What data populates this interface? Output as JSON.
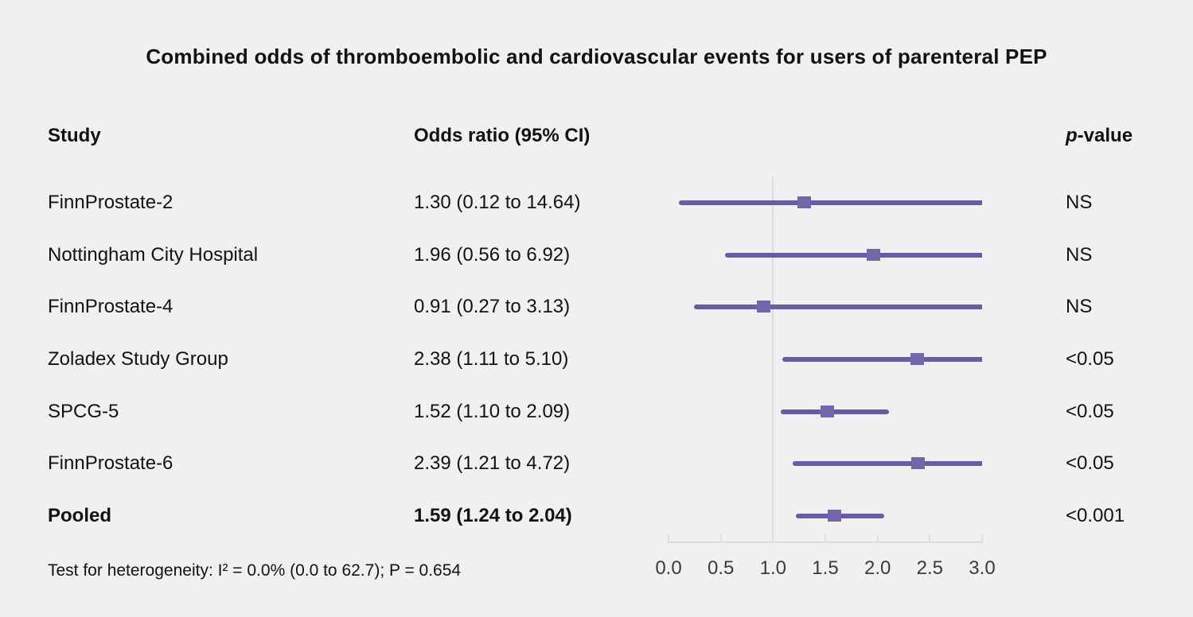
{
  "title": "Combined odds of thromboembolic and cardiovascular events for users of parenteral PEP",
  "columns": {
    "study": "Study",
    "odds_ratio": "Odds ratio (95% CI)",
    "p_italic": "p",
    "p_rest": "-value"
  },
  "footnote": "Test for heterogeneity: I² = 0.0% (0.0 to 62.7); P = 0.654",
  "colors": {
    "background": "#f1f0f0",
    "ci_line": "#675ca7",
    "or_marker": "#7565ab",
    "axis": "#d9dde1",
    "text": "#121212"
  },
  "chart_data": {
    "type": "forest",
    "title": "Combined odds of thromboembolic and cardiovascular events for users of parenteral PEP",
    "xlim": [
      0.0,
      3.0
    ],
    "reference_line": 1.0,
    "x_ticks": [
      0.0,
      0.5,
      1.0,
      1.5,
      2.0,
      2.5,
      3.0
    ],
    "x_tick_labels": [
      "0.0",
      "0.5",
      "1.0",
      "1.5",
      "2.0",
      "2.5",
      "3.0"
    ],
    "grid": false,
    "studies": [
      {
        "study": "FinnProstate-2",
        "or": 1.3,
        "ci_low": 0.12,
        "ci_high": 14.64,
        "or_ci_label": "1.30 (0.12 to 14.64)",
        "p_value": "NS",
        "bold": false
      },
      {
        "study": "Nottingham City Hospital",
        "or": 1.96,
        "ci_low": 0.56,
        "ci_high": 6.92,
        "or_ci_label": "1.96 (0.56 to 6.92)",
        "p_value": "NS",
        "bold": false
      },
      {
        "study": "FinnProstate-4",
        "or": 0.91,
        "ci_low": 0.27,
        "ci_high": 3.13,
        "or_ci_label": "0.91 (0.27 to 3.13)",
        "p_value": "NS",
        "bold": false
      },
      {
        "study": "Zoladex Study Group",
        "or": 2.38,
        "ci_low": 1.11,
        "ci_high": 5.1,
        "or_ci_label": "2.38 (1.11 to 5.10)",
        "p_value": "<0.05",
        "bold": false
      },
      {
        "study": "SPCG-5",
        "or": 1.52,
        "ci_low": 1.1,
        "ci_high": 2.09,
        "or_ci_label": "1.52 (1.10 to 2.09)",
        "p_value": "<0.05",
        "bold": false
      },
      {
        "study": "FinnProstate-6",
        "or": 2.39,
        "ci_low": 1.21,
        "ci_high": 4.72,
        "or_ci_label": "2.39 (1.21 to 4.72)",
        "p_value": "<0.05",
        "bold": false
      },
      {
        "study": "Pooled",
        "or": 1.59,
        "ci_low": 1.24,
        "ci_high": 2.04,
        "or_ci_label": "1.59 (1.24 to 2.04)",
        "p_value": "<0.001",
        "bold": true
      }
    ]
  }
}
